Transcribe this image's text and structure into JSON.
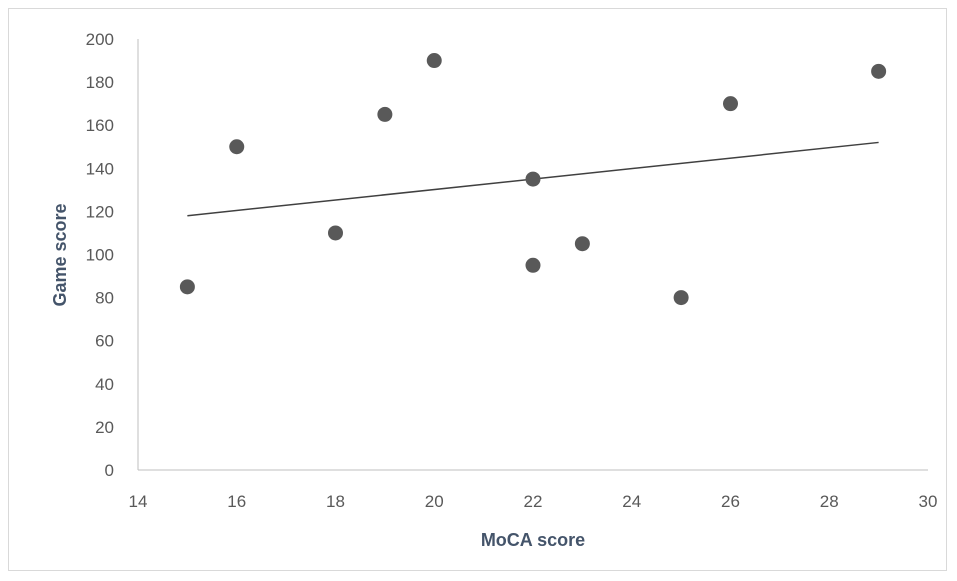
{
  "chart_data": {
    "type": "scatter",
    "title": "",
    "xlabel": "MoCA score",
    "ylabel": "Game score",
    "xlim": [
      14,
      30
    ],
    "ylim": [
      0,
      200
    ],
    "xticks": [
      14,
      16,
      18,
      20,
      22,
      24,
      26,
      28,
      30
    ],
    "yticks": [
      0,
      20,
      40,
      60,
      80,
      100,
      120,
      140,
      160,
      180,
      200
    ],
    "grid": false,
    "legend": "none",
    "points": [
      {
        "x": 15,
        "y": 85
      },
      {
        "x": 16,
        "y": 150
      },
      {
        "x": 18,
        "y": 110
      },
      {
        "x": 19,
        "y": 165
      },
      {
        "x": 20,
        "y": 190
      },
      {
        "x": 22,
        "y": 135
      },
      {
        "x": 22,
        "y": 95
      },
      {
        "x": 23,
        "y": 105
      },
      {
        "x": 25,
        "y": 80
      },
      {
        "x": 26,
        "y": 170
      },
      {
        "x": 29,
        "y": 185
      }
    ],
    "trendline": {
      "type": "linear",
      "x": [
        15,
        29
      ],
      "y": [
        118,
        152
      ]
    },
    "colors": {
      "marker": "#595959",
      "trendline": "#404040",
      "axis": "#bfbfbf",
      "tick_text": "#595959",
      "axis_title": "#44546a"
    }
  }
}
